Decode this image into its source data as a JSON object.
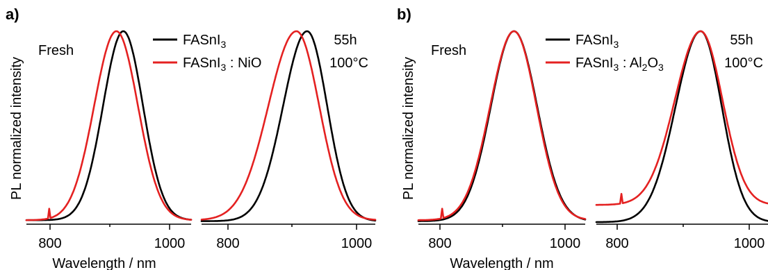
{
  "chart_data": [
    {
      "type": "line",
      "panel": "a)",
      "ylabel": "PL normalized intensity",
      "xlabel": "Wavelength / nm",
      "legend": {
        "position": "top-right",
        "entries": [
          {
            "base": "FASnI",
            "sub": "3",
            "suffix": ""
          },
          {
            "base": "FASnI",
            "sub": "3",
            "suffix": " : NiO"
          }
        ]
      },
      "subplots": [
        {
          "annotation": [
            "Fresh"
          ],
          "xlim": [
            770,
            1030
          ],
          "ylim": [
            0,
            1
          ],
          "xticks": [
            800,
            1000
          ],
          "series": [
            {
              "color": "#000000",
              "peak": 923,
              "sigma_left": 32,
              "sigma_right": 31,
              "baseline": 0.01
            },
            {
              "color": "#e42121",
              "peak": 912,
              "sigma_left": 35,
              "sigma_right": 34,
              "baseline": 0.01,
              "spike": 806
            }
          ]
        },
        {
          "annotation": [
            "55h",
            "100°C"
          ],
          "xlim": [
            770,
            1030
          ],
          "ylim": [
            0,
            1
          ],
          "xticks": [
            800,
            1000
          ],
          "series": [
            {
              "color": "#000000",
              "peak": 928,
              "sigma_left": 36,
              "sigma_right": 30,
              "baseline": 0.005
            },
            {
              "color": "#e42121",
              "peak": 912,
              "sigma_left": 42,
              "sigma_right": 34,
              "baseline": 0.01
            }
          ]
        }
      ]
    },
    {
      "type": "line",
      "panel": "b)",
      "ylabel": "PL normalized intensity",
      "xlabel": "Wavelength / nm",
      "legend": {
        "position": "top-right",
        "entries": [
          {
            "base": "FASnI",
            "sub": "3",
            "suffix": ""
          },
          {
            "base": "FASnI",
            "sub": "3",
            "suffix": " : Al",
            "sub2": "2",
            "suffix2": "O",
            "sub3": "3"
          }
        ]
      },
      "subplots": [
        {
          "annotation": [
            "Fresh"
          ],
          "xlim": [
            770,
            1030
          ],
          "ylim": [
            0,
            1
          ],
          "xticks": [
            800,
            1000
          ],
          "series": [
            {
              "color": "#000000",
              "peak": 919,
              "sigma_left": 36,
              "sigma_right": 36,
              "baseline": 0.005
            },
            {
              "color": "#e42121",
              "peak": 919,
              "sigma_left": 37,
              "sigma_right": 35,
              "baseline": 0.01,
              "spike": 807
            }
          ]
        },
        {
          "annotation": [
            "55h",
            "100°C"
          ],
          "xlim": [
            770,
            1030
          ],
          "ylim": [
            0,
            1
          ],
          "xticks": [
            800,
            1000
          ],
          "series": [
            {
              "color": "#000000",
              "peak": 928,
              "sigma_left": 38,
              "sigma_right": 32,
              "baseline": 0.0
            },
            {
              "color": "#e42121",
              "peak": 928,
              "sigma_left": 39,
              "sigma_right": 33,
              "baseline": 0.09,
              "spike": 808
            }
          ]
        }
      ]
    }
  ]
}
